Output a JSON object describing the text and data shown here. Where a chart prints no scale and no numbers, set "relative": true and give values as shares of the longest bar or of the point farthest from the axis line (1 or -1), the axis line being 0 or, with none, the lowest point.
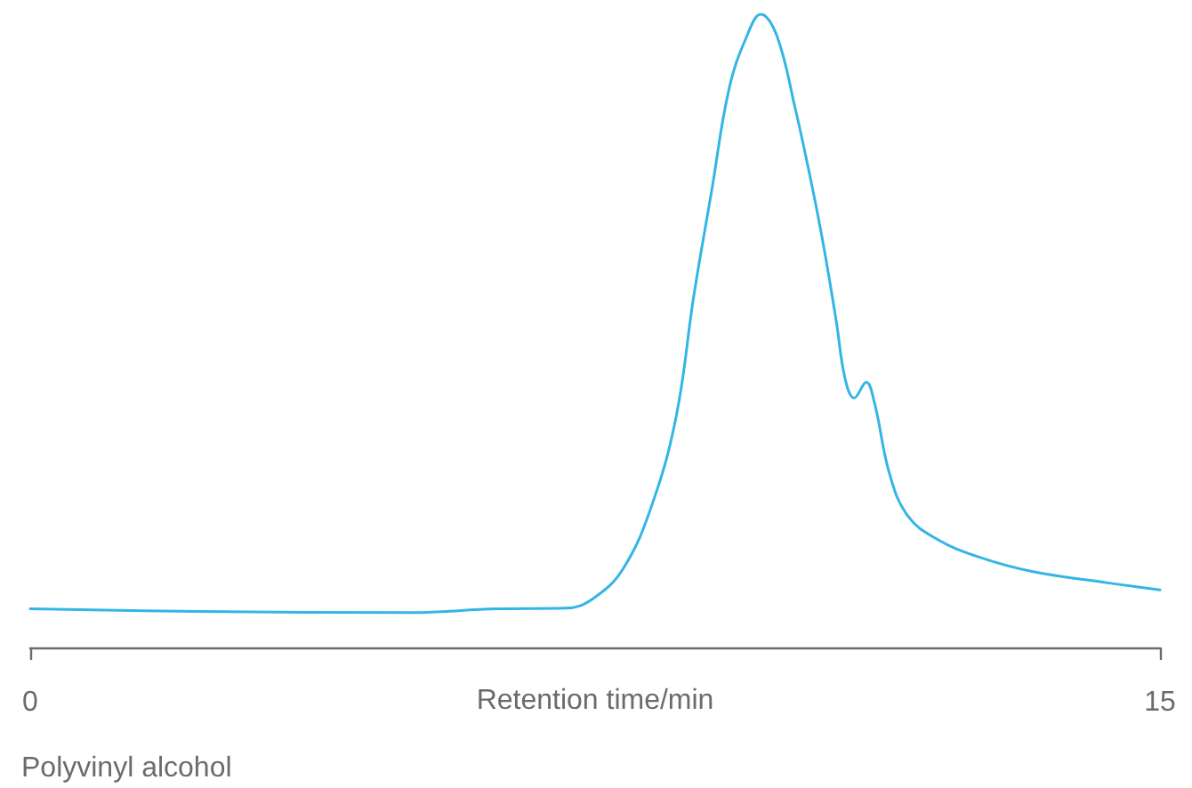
{
  "chart_data": {
    "type": "line",
    "xlabel": "Retention time/min",
    "annotations": [
      "Polyvinyl alcohol"
    ],
    "x": [
      0,
      2.24,
      5.08,
      6.19,
      7.11,
      7.47,
      7.87,
      8.26,
      8.58,
      8.81,
      9.05,
      9.28,
      9.52,
      9.7,
      9.91,
      10.15,
      10.39,
      10.54,
      10.7,
      10.82,
      10.94,
      11.1,
      11.21,
      11.41,
      11.65,
      12.04,
      12.59,
      13.3,
      14.31,
      15
    ],
    "series": [
      {
        "color": "#33b5e5",
        "values": [
          0.061,
          0.057,
          0.055,
          0.061,
          0.062,
          0.077,
          0.124,
          0.227,
          0.367,
          0.555,
          0.723,
          0.883,
          0.967,
          1,
          0.967,
          0.855,
          0.723,
          0.63,
          0.517,
          0.424,
          0.394,
          0.419,
          0.386,
          0.274,
          0.208,
          0.171,
          0.143,
          0.12,
          0.102,
          0.091
        ]
      }
    ],
    "relative": true,
    "xlim": [
      0,
      15
    ],
    "xticks": [
      0,
      15
    ],
    "grid": false,
    "marker": "none",
    "line_style": "solid",
    "tick_labels": "x"
  }
}
